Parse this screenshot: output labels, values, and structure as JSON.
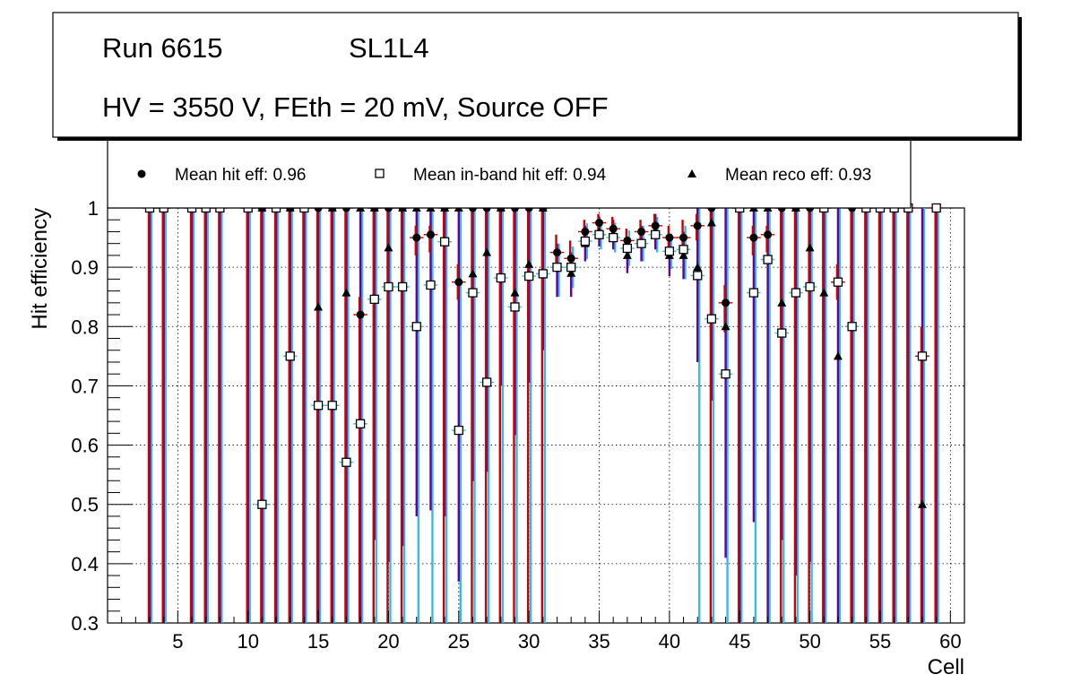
{
  "chart_data": {
    "type": "scatter",
    "title_line1_run": "Run 6615",
    "title_line1_layer": "SL1L4",
    "title_line2": "HV = 3550 V, FEth = 20 mV, Source OFF",
    "xlabel": "Cell",
    "ylabel": "Hit efficiency",
    "xlim": [
      0,
      61
    ],
    "ylim": [
      0.3,
      1.0
    ],
    "x_ticks": [
      5,
      10,
      15,
      20,
      25,
      30,
      35,
      40,
      45,
      50,
      55,
      60
    ],
    "y_ticks": [
      0.3,
      0.4,
      0.5,
      0.6,
      0.7,
      0.8,
      0.9,
      1
    ],
    "y_tick_labels": [
      "0.3",
      "0.4",
      "0.5",
      "0.6",
      "0.7",
      "0.8",
      "0.9",
      "1"
    ],
    "grid": true,
    "legend": [
      {
        "marker": "circle",
        "label": "Mean hit  eff: 0.96"
      },
      {
        "marker": "open-square",
        "label": "Mean in-band hit eff: 0.94"
      },
      {
        "marker": "triangle",
        "label": "Mean reco eff: 0.93"
      }
    ],
    "colors": {
      "hit_err": "#cc0000",
      "reco_err": "#660099",
      "inband_err": "#33bbee",
      "frame": "#000000"
    },
    "cells": [
      3,
      4,
      6,
      7,
      8,
      10,
      11,
      12,
      13,
      14,
      15,
      16,
      17,
      18,
      19,
      20,
      21,
      22,
      23,
      24,
      25,
      26,
      27,
      28,
      29,
      30,
      31,
      32,
      33,
      34,
      35,
      36,
      37,
      38,
      39,
      40,
      41,
      42,
      43,
      44,
      45,
      46,
      47,
      48,
      49,
      50,
      51,
      52,
      53,
      54,
      55,
      56,
      57,
      58,
      59
    ],
    "series": [
      {
        "name": "hit",
        "values": [
          1,
          1,
          1,
          1,
          1,
          1,
          1,
          1,
          1,
          1,
          1,
          1,
          1,
          0.82,
          1,
          1,
          1,
          0.95,
          0.955,
          1,
          0.875,
          1,
          1,
          1,
          1,
          1,
          1,
          0.925,
          0.915,
          0.96,
          0.975,
          0.965,
          0.945,
          0.96,
          0.97,
          0.95,
          0.95,
          0.97,
          1,
          0.84,
          1,
          0.95,
          0.955,
          1,
          1,
          1,
          1,
          0.875,
          1,
          1,
          1,
          1,
          1,
          0.75,
          1
        ],
        "err_low": [
          0.7,
          0.7,
          0.7,
          0.7,
          0.7,
          0.7,
          0.7,
          0.7,
          0.7,
          0.7,
          0.7,
          0.7,
          0.7,
          0.52,
          0.7,
          0.7,
          0.7,
          0.03,
          0.03,
          0.7,
          0.03,
          0.7,
          0.7,
          0.7,
          0.7,
          0.7,
          0.7,
          0.03,
          0.03,
          0.025,
          0.02,
          0.02,
          0.02,
          0.02,
          0.02,
          0.025,
          0.025,
          0.025,
          0.7,
          0.05,
          0.7,
          0.03,
          0.03,
          0.7,
          0.7,
          0.7,
          0.7,
          0.03,
          0.7,
          0.7,
          0.7,
          0.7,
          0.7,
          0.45,
          0.7
        ],
        "err_high": [
          0,
          0,
          0,
          0,
          0,
          0,
          0,
          0,
          0,
          0,
          0,
          0,
          0,
          0.03,
          0,
          0,
          0,
          0.02,
          0.015,
          0,
          0.03,
          0,
          0,
          0,
          0,
          0,
          0,
          0.03,
          0.03,
          0.02,
          0.015,
          0.02,
          0.02,
          0.02,
          0.02,
          0.02,
          0.03,
          0.02,
          0,
          0.03,
          0,
          0.02,
          0.015,
          0,
          0,
          0,
          0,
          0.03,
          0,
          0,
          0,
          0,
          0,
          0.05,
          0
        ]
      },
      {
        "name": "inband",
        "values": [
          1,
          1,
          1,
          1,
          1,
          1,
          0.5,
          1,
          0.75,
          1,
          0.667,
          0.667,
          0.571,
          0.636,
          0.846,
          0.867,
          0.867,
          0.8,
          0.87,
          0.943,
          0.625,
          0.857,
          0.706,
          0.882,
          0.833,
          0.885,
          0.889,
          0.9,
          0.9,
          0.944,
          0.955,
          0.95,
          0.932,
          0.94,
          0.955,
          0.927,
          0.93,
          0.886,
          0.813,
          0.72,
          1,
          0.857,
          0.913,
          0.789,
          0.857,
          0.867,
          1,
          0.875,
          0.8,
          1,
          1,
          1,
          1,
          0.75,
          1
        ],
        "err_low": [
          0.7,
          0.7,
          0.7,
          0.7,
          0.7,
          0.7,
          0.2,
          0.7,
          0.45,
          0.7,
          0.367,
          0.367,
          0.271,
          0.336,
          0.546,
          0.567,
          0.567,
          0.5,
          0.57,
          0.643,
          0.325,
          0.557,
          0.406,
          0.582,
          0.533,
          0.585,
          0.589,
          0.05,
          0.035,
          0.03,
          0.025,
          0.025,
          0.03,
          0.03,
          0.03,
          0.03,
          0.05,
          0.586,
          0.513,
          0.42,
          0.7,
          0.557,
          0.613,
          0.489,
          0.557,
          0.567,
          0.7,
          0.575,
          0.5,
          0.7,
          0.7,
          0.7,
          0.7,
          0.45,
          0.7
        ],
        "err_high": [
          0,
          0,
          0,
          0,
          0,
          0,
          0.5,
          0,
          0.25,
          0,
          0.333,
          0.333,
          0.429,
          0.364,
          0.154,
          0.133,
          0.133,
          0.2,
          0.13,
          0.057,
          0.375,
          0.143,
          0.294,
          0.118,
          0.167,
          0.115,
          0.111,
          0.04,
          0.035,
          0.03,
          0.025,
          0.025,
          0.03,
          0.03,
          0.03,
          0.03,
          0.04,
          0.114,
          0.187,
          0.28,
          0,
          0.143,
          0.087,
          0.211,
          0.143,
          0.133,
          0,
          0.125,
          0.2,
          0,
          0,
          0,
          0,
          0.25,
          0
        ]
      },
      {
        "name": "reco",
        "values": [
          1,
          1,
          1,
          1,
          1,
          1,
          1,
          1,
          1,
          1,
          0.833,
          1,
          0.857,
          1,
          1,
          0.933,
          1,
          1,
          1,
          1,
          1,
          0.889,
          0.925,
          1,
          0.857,
          0.905,
          1,
          0.9,
          0.89,
          0.94,
          0.96,
          0.955,
          0.92,
          0.94,
          0.96,
          0.92,
          0.92,
          0.9,
          0.975,
          0.8,
          1,
          1,
          1,
          0.84,
          1,
          0.933,
          0.857,
          0.75,
          0.8,
          1,
          1,
          1,
          1,
          0.5,
          1
        ],
        "err_low": [
          0.7,
          0.7,
          0.7,
          0.7,
          0.7,
          0.7,
          0.7,
          0.7,
          0.7,
          0.7,
          0.533,
          0.7,
          0.557,
          0.7,
          0.56,
          0.53,
          0.57,
          0.52,
          0.51,
          0.52,
          0.63,
          0.35,
          0.37,
          0.3,
          0.24,
          0.2,
          0.24,
          0.05,
          0.04,
          0.03,
          0.025,
          0.025,
          0.03,
          0.03,
          0.03,
          0.035,
          0.04,
          0.16,
          0.3,
          0.39,
          0.7,
          0.53,
          0.7,
          0.4,
          0.62,
          0.53,
          0.557,
          0.45,
          0.5,
          0.7,
          0.7,
          0.7,
          0.7,
          0.2,
          0.7
        ],
        "err_high": [
          0,
          0,
          0,
          0,
          0,
          0,
          0,
          0,
          0,
          0,
          0.167,
          0,
          0.143,
          0,
          0,
          0.067,
          0,
          0,
          0,
          0,
          0,
          0.111,
          0.075,
          0,
          0.143,
          0.095,
          0,
          0.04,
          0.035,
          0.03,
          0.025,
          0.025,
          0.03,
          0.03,
          0.03,
          0.03,
          0.04,
          0.1,
          0.025,
          0.2,
          0,
          0,
          0,
          0.16,
          0,
          0.067,
          0.143,
          0.25,
          0.2,
          0,
          0,
          0,
          0,
          0.5,
          0
        ]
      }
    ]
  }
}
